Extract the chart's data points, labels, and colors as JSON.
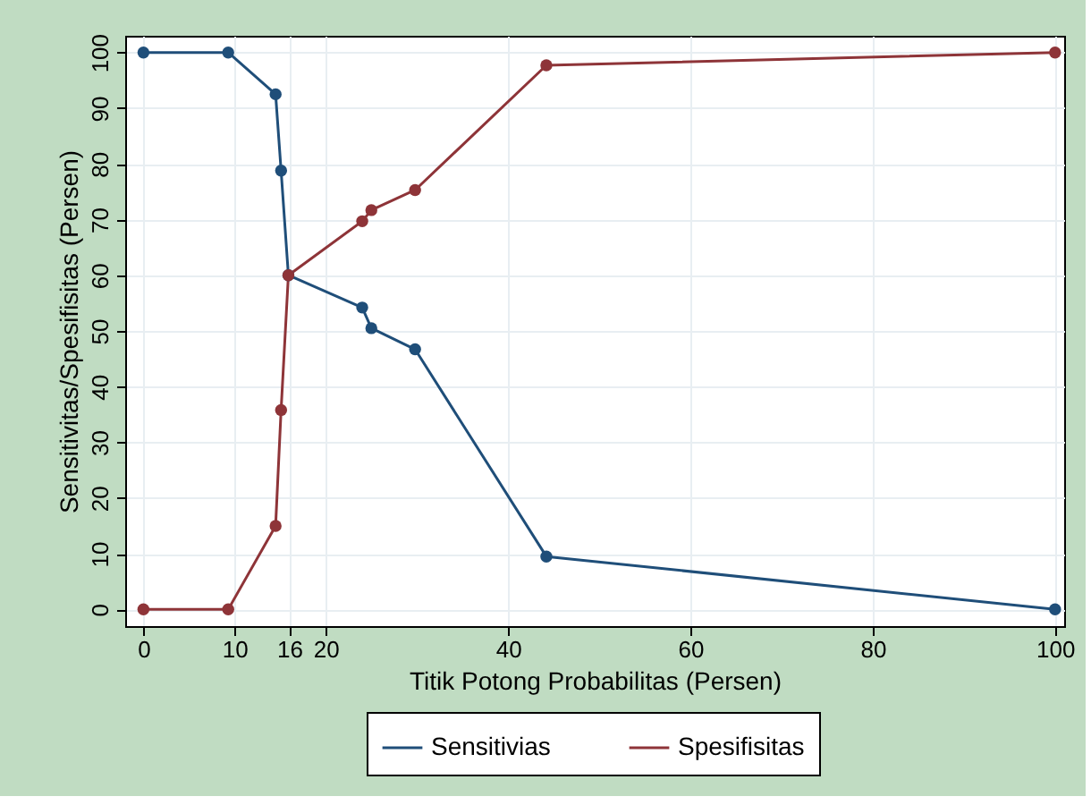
{
  "chart_data": {
    "type": "line",
    "xlabel": "Titik Potong Probabilitas (Persen)",
    "ylabel": "Sensitivitas/Spesifisitas (Persen)",
    "xlim": [
      -2,
      101
    ],
    "xticks": [
      0,
      10,
      16,
      20,
      40,
      60,
      80,
      100
    ],
    "ylim": [
      -3,
      103
    ],
    "yticks": [
      0,
      10,
      20,
      30,
      40,
      50,
      60,
      70,
      80,
      90,
      100
    ],
    "grid": true,
    "legend": "bottom",
    "marker": "circle",
    "line_style": "solid",
    "series": [
      {
        "name": "Sensitivias",
        "color": "#1f4e79",
        "x": [
          0,
          9.3,
          14.5,
          15.1,
          15.9,
          24,
          25,
          29.8,
          44.2,
          100
        ],
        "values": [
          100,
          100,
          92.5,
          78.8,
          60,
          54.2,
          50.5,
          46.7,
          9.5,
          0
        ]
      },
      {
        "name": "Spesifisitas",
        "color": "#8e3438",
        "x": [
          0,
          9.3,
          14.5,
          15.1,
          15.9,
          24,
          25,
          29.8,
          44.2,
          100
        ],
        "values": [
          0,
          0,
          15,
          35.8,
          60,
          69.7,
          71.7,
          75.3,
          97.7,
          100
        ]
      }
    ]
  }
}
